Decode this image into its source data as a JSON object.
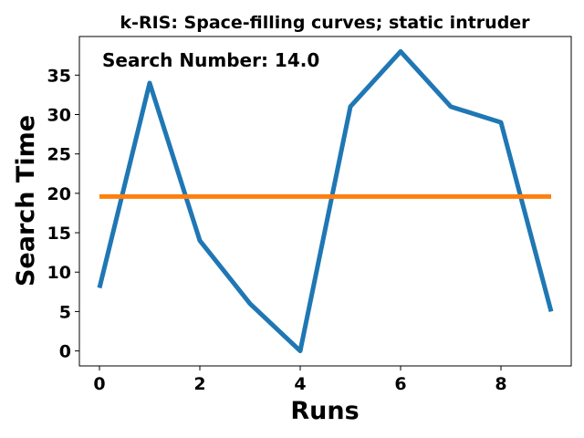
{
  "chart_data": {
    "type": "line",
    "title": "k-RIS: Space-filling curves; static intruder",
    "annotation": "Search Number: 14.0",
    "xlabel": "Runs",
    "ylabel": "Search Time",
    "xlim": [
      -0.4,
      9.4
    ],
    "ylim": [
      -1.9,
      39.9
    ],
    "xticks": [
      0,
      2,
      4,
      6,
      8
    ],
    "yticks": [
      0,
      5,
      10,
      15,
      20,
      25,
      30,
      35
    ],
    "grid": false,
    "series": [
      {
        "color": "#1f77b4",
        "x": [
          0,
          1,
          2,
          3,
          4,
          5,
          6,
          7,
          8,
          9
        ],
        "values": [
          8,
          34,
          14,
          6,
          0,
          31,
          38,
          31,
          29,
          5
        ]
      },
      {
        "color": "#ff7f0e",
        "x": [
          0,
          9
        ],
        "values": [
          19.6,
          19.6
        ]
      }
    ]
  }
}
